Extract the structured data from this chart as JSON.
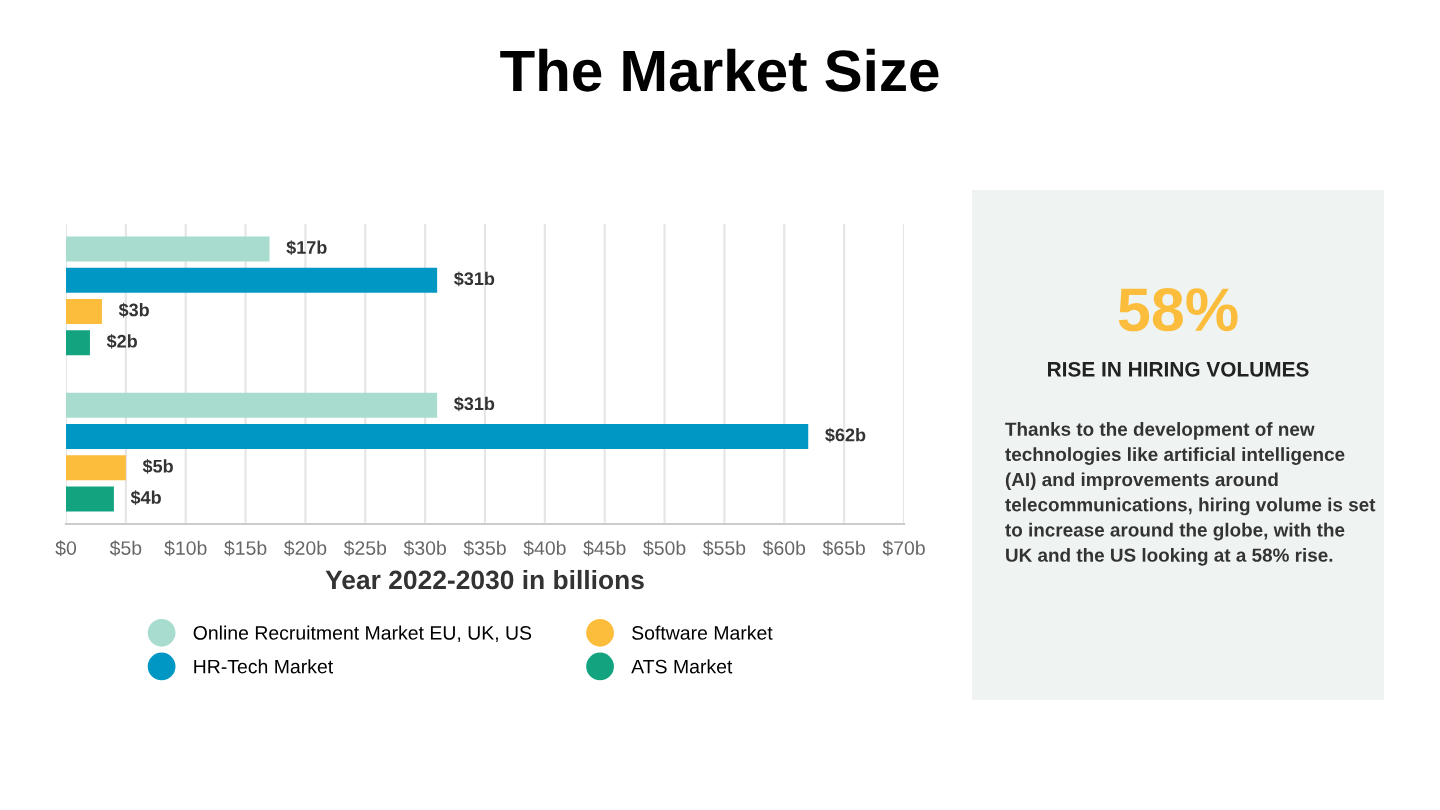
{
  "chart_data": [
    {
      "type": "bar",
      "orientation": "horizontal",
      "title": "The Market Size",
      "xlabel": "Year 2022-2030 in billions",
      "categories": [
        null,
        null
      ],
      "series": [
        {
          "name": "Online Recruitment Market EU, UK, US",
          "color": "#a8dccf",
          "values": [
            17,
            31
          ],
          "value_labels": [
            "$17b",
            "$31b"
          ]
        },
        {
          "name": "HR-Tech Market",
          "color": "#0097c4",
          "values": [
            31,
            62
          ],
          "value_labels": [
            "$31b",
            "$62b"
          ]
        },
        {
          "name": "Software Market",
          "color": "#fbbd3b",
          "values": [
            3,
            5
          ],
          "value_labels": [
            "$3b",
            "$5b"
          ]
        },
        {
          "name": "ATS Market",
          "color": "#13a47f",
          "values": [
            2,
            4
          ],
          "value_labels": [
            "$2b",
            "$4b"
          ]
        }
      ],
      "xlim": [
        0,
        70
      ],
      "xticks": [
        {
          "value": 0,
          "label": "$0"
        },
        {
          "value": 5,
          "label": "$5b"
        },
        {
          "value": 10,
          "label": "$10b"
        },
        {
          "value": 15,
          "label": "$15b"
        },
        {
          "value": 20,
          "label": "$20b"
        },
        {
          "value": 25,
          "label": "$25b"
        },
        {
          "value": 30,
          "label": "$30b"
        },
        {
          "value": 35,
          "label": "$35b"
        },
        {
          "value": 40,
          "label": "$40b"
        },
        {
          "value": 45,
          "label": "$45b"
        },
        {
          "value": 50,
          "label": "$50b"
        },
        {
          "value": 55,
          "label": "$55b"
        },
        {
          "value": 60,
          "label": "$60b"
        },
        {
          "value": 65,
          "label": "$65b"
        },
        {
          "value": 70,
          "label": "$70b"
        }
      ],
      "grid": "x",
      "legend": "bottom"
    },
    {
      "type": "other",
      "title": "58%",
      "subtitle": "RISE IN HIRING VOLUMES",
      "annotations": [
        "Thanks to the development of new\ntechnologies like artificial intelligence\n(AI) and improvements around\ntelecommunications, hiring volume is set\nto increase around the globe, with the\nUK and the US looking at a 58% rise."
      ]
    }
  ]
}
